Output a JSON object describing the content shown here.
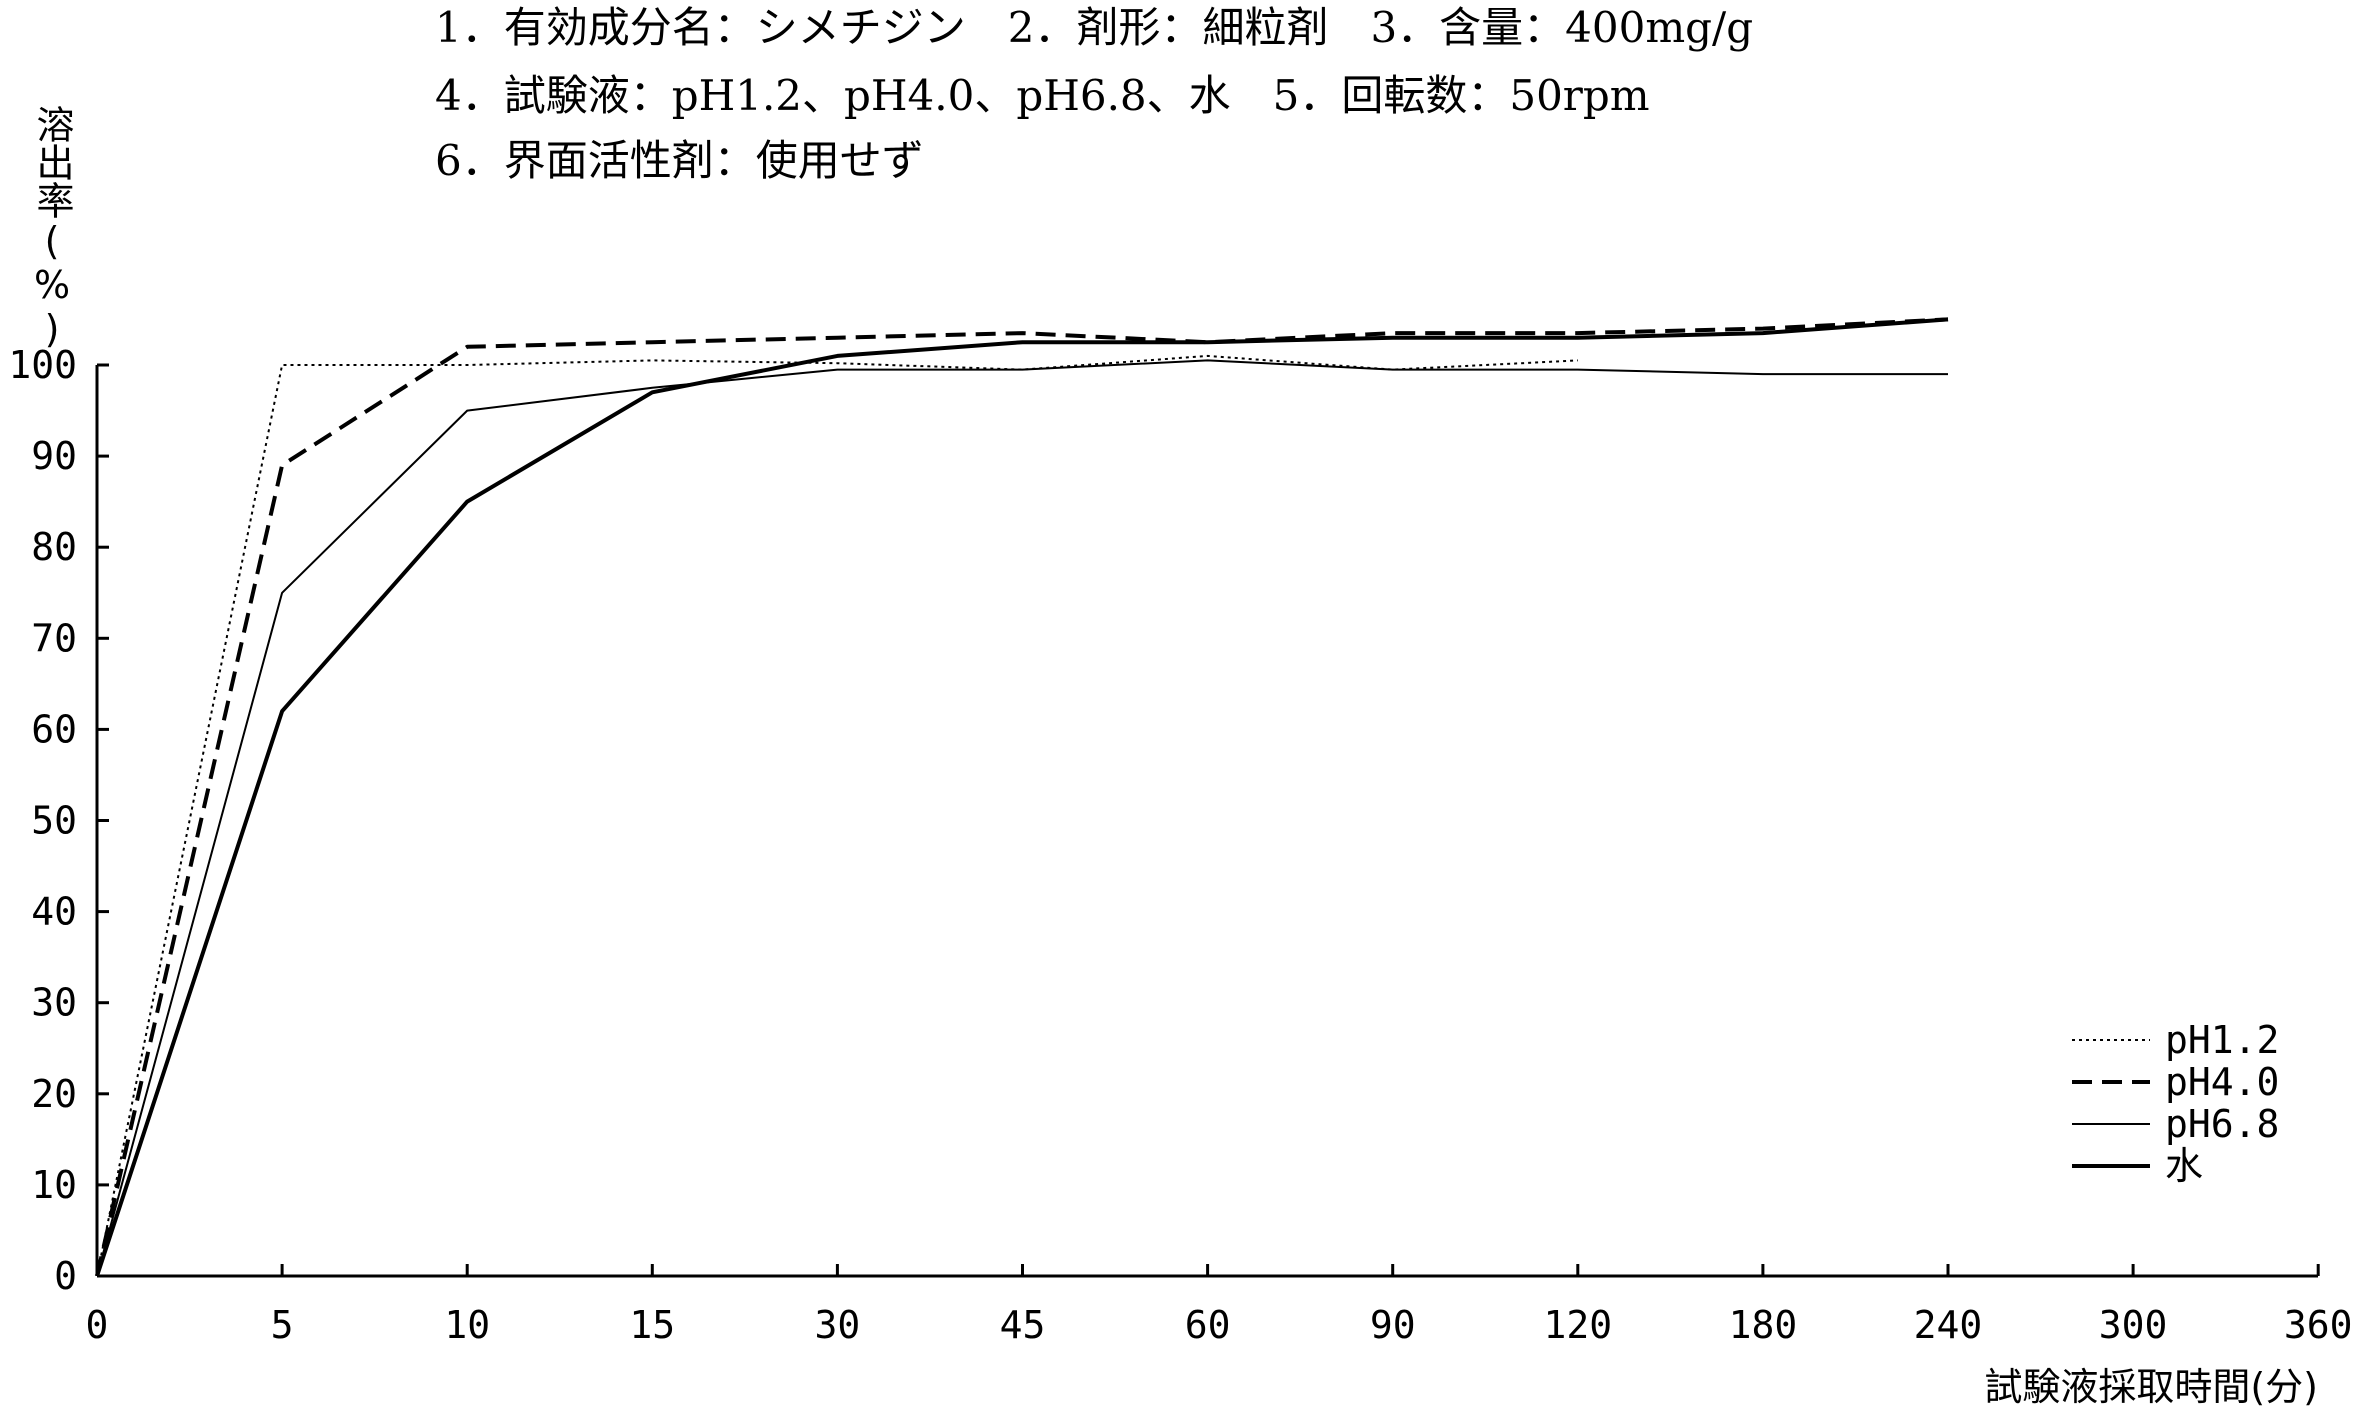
{
  "header": {
    "line1": "1．有効成分名：シメチジン　2．剤形：細粒剤　3．含量：400mg/g",
    "line2": "4．試験液：pH1.2、pH4.0、pH6.8、水　5．回転数：50rpm",
    "line3": "6．界面活性剤：使用せず"
  },
  "chart_data": {
    "type": "line",
    "xlabel": "試験液採取時間(分)",
    "ylabel": "溶出率(%)",
    "categories": [
      "0",
      "5",
      "10",
      "15",
      "30",
      "45",
      "60",
      "90",
      "120",
      "180",
      "240",
      "300",
      "360"
    ],
    "ylim": [
      0,
      100
    ],
    "yticks": [
      0,
      10,
      20,
      30,
      40,
      50,
      60,
      70,
      80,
      90,
      100
    ],
    "grid": false,
    "legend": "bottom-right",
    "series": [
      {
        "name": "pH1.2",
        "style": "dotted",
        "values": [
          0,
          100,
          100,
          100.5,
          100.2,
          99.5,
          101,
          99.5,
          100.5,
          null,
          null,
          null,
          null
        ]
      },
      {
        "name": "pH4.0",
        "style": "dashed",
        "values": [
          0,
          89,
          102,
          102.5,
          103,
          103.5,
          102.5,
          103.5,
          103.5,
          104,
          105,
          null,
          null
        ]
      },
      {
        "name": "pH6.8",
        "style": "thin",
        "values": [
          0,
          75,
          95,
          97.5,
          99.5,
          99.5,
          100.5,
          99.5,
          99.5,
          99,
          99,
          null,
          null
        ]
      },
      {
        "name": "水",
        "style": "thick",
        "values": [
          0,
          62,
          85,
          97,
          101,
          102.5,
          102.5,
          103,
          103,
          103.5,
          105,
          null,
          null
        ]
      }
    ]
  }
}
